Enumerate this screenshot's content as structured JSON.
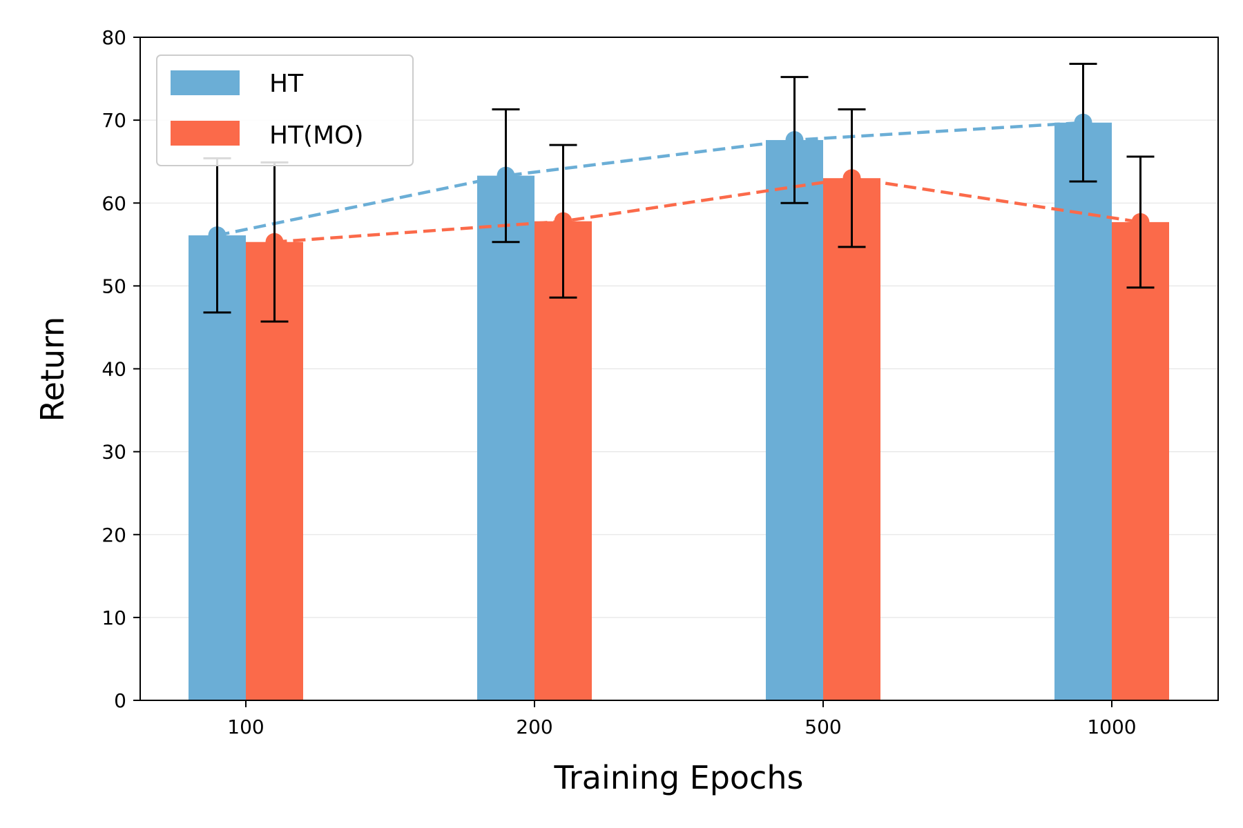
{
  "chart_data": {
    "type": "bar",
    "xlabel": "Training Epochs",
    "ylabel": "Return",
    "categories": [
      "100",
      "200",
      "500",
      "1000"
    ],
    "ylim": [
      0,
      80
    ],
    "yticks": [
      0,
      10,
      20,
      30,
      40,
      50,
      60,
      70,
      80
    ],
    "grid": "horizontal",
    "legend_position": "top-left",
    "series": [
      {
        "name": "HT",
        "color": "#6baed6",
        "values": [
          56.1,
          63.3,
          67.6,
          69.7
        ],
        "error": [
          9.3,
          8.0,
          7.6,
          7.1
        ],
        "line_style": "dashed"
      },
      {
        "name": "HT(MO)",
        "color": "#fb6a4a",
        "values": [
          55.3,
          57.8,
          63.0,
          57.7
        ],
        "error": [
          9.6,
          9.2,
          8.3,
          7.9
        ],
        "line_style": "dashed"
      }
    ]
  }
}
